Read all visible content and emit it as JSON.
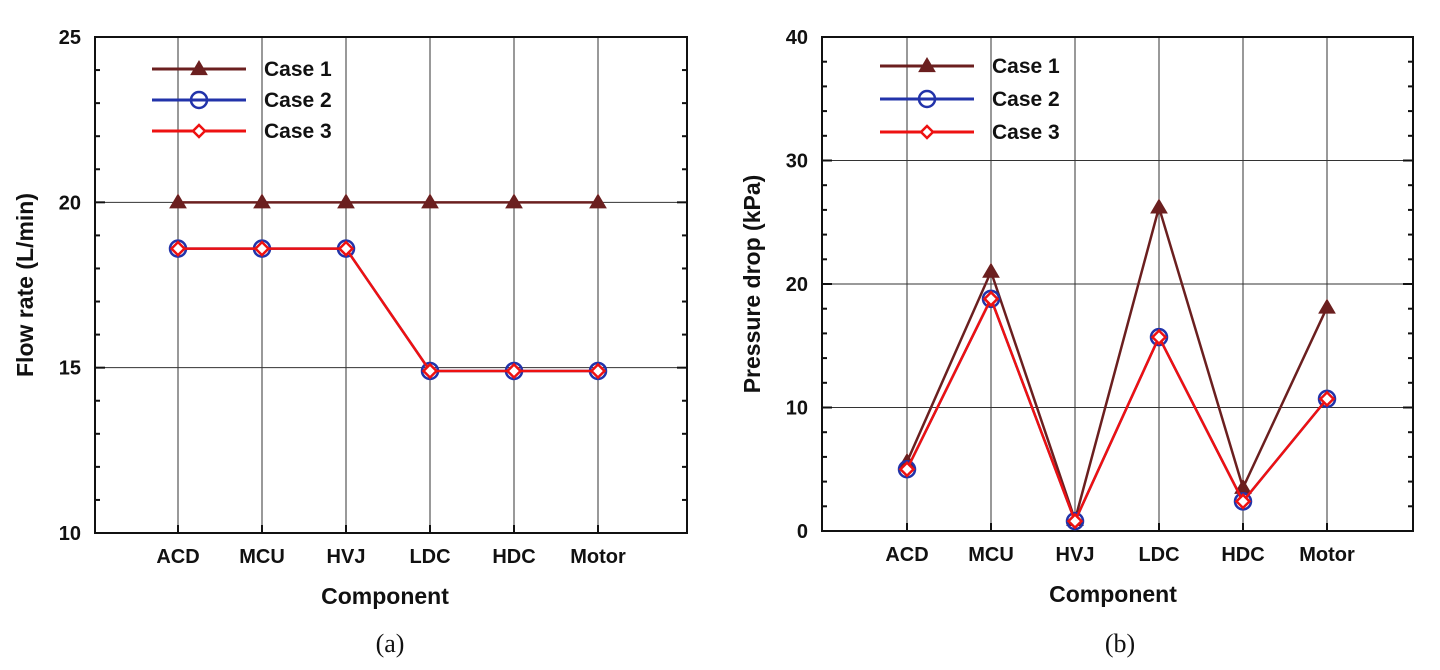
{
  "chart_data": [
    {
      "type": "line",
      "caption": "(a)",
      "xlabel": "Component",
      "ylabel": "Flow rate (L/min)",
      "categories": [
        "ACD",
        "MCU",
        "HVJ",
        "LDC",
        "HDC",
        "Motor"
      ],
      "ylim": [
        10,
        25
      ],
      "yticks": [
        10,
        15,
        20,
        25
      ],
      "grid": true,
      "legend_position": "top-left",
      "series": [
        {
          "name": "Case 1",
          "values": [
            20,
            20,
            20,
            20,
            20,
            20
          ],
          "color": "#6b1f1f",
          "marker": "triangle"
        },
        {
          "name": "Case 2",
          "values": [
            18.6,
            18.6,
            18.6,
            14.9,
            14.9,
            14.9
          ],
          "color": "#2233aa",
          "marker": "circle"
        },
        {
          "name": "Case 3",
          "values": [
            18.6,
            18.6,
            18.6,
            14.9,
            14.9,
            14.9
          ],
          "color": "#ee1111",
          "marker": "diamond"
        }
      ]
    },
    {
      "type": "line",
      "caption": "(b)",
      "xlabel": "Component",
      "ylabel": "Pressure drop (kPa)",
      "categories": [
        "ACD",
        "MCU",
        "HVJ",
        "LDC",
        "HDC",
        "Motor"
      ],
      "ylim": [
        0,
        40
      ],
      "yticks": [
        0,
        10,
        20,
        30,
        40
      ],
      "grid": true,
      "legend_position": "top-left",
      "series": [
        {
          "name": "Case 1",
          "values": [
            5.6,
            21,
            0.9,
            26.2,
            3.5,
            18.1
          ],
          "color": "#6b1f1f",
          "marker": "triangle"
        },
        {
          "name": "Case 2",
          "values": [
            5,
            18.8,
            0.8,
            15.7,
            2.4,
            10.7
          ],
          "color": "#2233aa",
          "marker": "circle"
        },
        {
          "name": "Case 3",
          "values": [
            5,
            18.8,
            0.8,
            15.7,
            2.4,
            10.7
          ],
          "color": "#ee1111",
          "marker": "diamond"
        }
      ]
    }
  ]
}
